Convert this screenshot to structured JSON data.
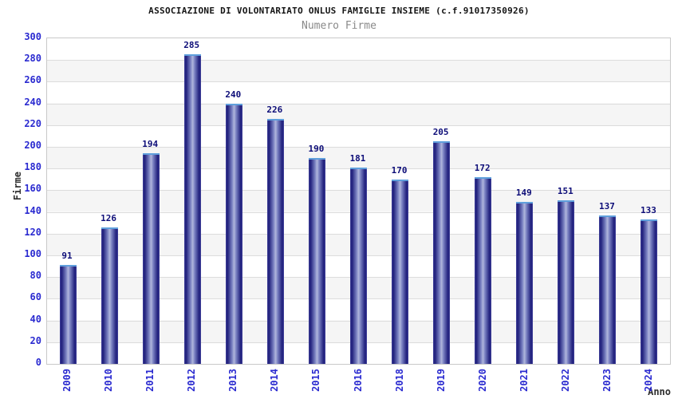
{
  "chart_data": {
    "type": "bar",
    "title": "ASSOCIAZIONE DI VOLONTARIATO ONLUS FAMIGLIE INSIEME (c.f.91017350926)",
    "subtitle": "Numero Firme",
    "xlabel": "Anno",
    "ylabel": "Firme",
    "categories": [
      "2009",
      "2010",
      "2011",
      "2012",
      "2013",
      "2014",
      "2015",
      "2016",
      "2018",
      "2019",
      "2020",
      "2021",
      "2022",
      "2023",
      "2024"
    ],
    "values": [
      91,
      126,
      194,
      285,
      240,
      226,
      190,
      181,
      170,
      205,
      172,
      149,
      151,
      137,
      133
    ],
    "ylim": [
      0,
      300
    ],
    "ytick_step": 20,
    "grid": true,
    "legend_position": "none",
    "band_fill": "alternating-horizontal",
    "colors": {
      "background": "#ffffff",
      "title": "#141414",
      "subtitle": "#8a8a8a",
      "tick_label": "#2a2ad0",
      "value_label": "#0d0d78",
      "axis_label": "#2e2e2e",
      "band": "#f5f5f5",
      "grid_line": "#dcdcdc",
      "plot_border": "#c9c9c9",
      "bar_dark": "#23237f",
      "bar_mid": "#7b82c2",
      "bar_light": "#b0b6dd",
      "bar_edge": "#45459e",
      "bar_cap": "#5f9fdc"
    }
  }
}
